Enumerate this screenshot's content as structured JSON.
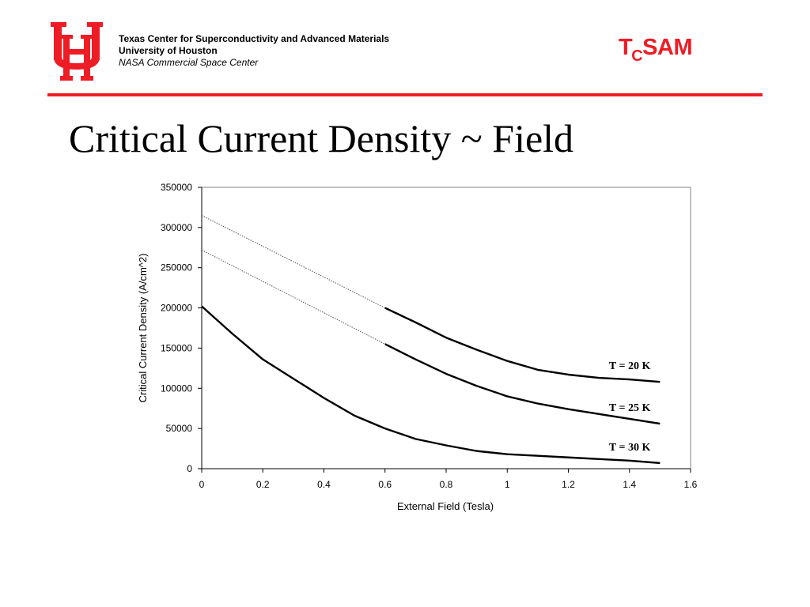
{
  "header": {
    "logo_text": "UH",
    "org_line1": "Texas Center for Superconductivity and Advanced Materials",
    "org_line2": "University of Houston",
    "org_line3": "NASA Commercial Space Center",
    "brand_main_t": "T",
    "brand_sub": "C",
    "brand_rest": "SAM",
    "accent_color": "#ee1c25"
  },
  "slide": {
    "title": "Critical Current Density ~ Field"
  },
  "chart_data": {
    "type": "line",
    "xlabel": "External Field (Tesla)",
    "ylabel": "Critical Current Density (A/cm^2)",
    "xlim": [
      0,
      1.6
    ],
    "ylim": [
      0,
      350000
    ],
    "xticks": [
      0,
      0.2,
      0.4,
      0.6,
      0.8,
      1,
      1.2,
      1.4,
      1.6
    ],
    "yticks": [
      0,
      50000,
      100000,
      150000,
      200000,
      250000,
      300000,
      350000
    ],
    "grid": false,
    "series": [
      {
        "name": "T = 20 K",
        "x": [
          0.6,
          0.7,
          0.8,
          0.9,
          1.0,
          1.1,
          1.2,
          1.3,
          1.4,
          1.5
        ],
        "values": [
          200000,
          182000,
          163000,
          148000,
          134000,
          123000,
          117000,
          113000,
          111000,
          108000
        ],
        "extrapolated_x": [
          0,
          0.6
        ],
        "extrapolated_values": [
          315000,
          200000
        ]
      },
      {
        "name": "T = 25 K",
        "x": [
          0.6,
          0.7,
          0.8,
          0.9,
          1.0,
          1.1,
          1.2,
          1.3,
          1.4,
          1.5
        ],
        "values": [
          155000,
          136000,
          118000,
          103000,
          90000,
          81000,
          74000,
          68000,
          62000,
          56000
        ],
        "extrapolated_x": [
          0,
          0.6
        ],
        "extrapolated_values": [
          272000,
          155000
        ]
      },
      {
        "name": "T = 30 K",
        "x": [
          0,
          0.1,
          0.2,
          0.3,
          0.4,
          0.5,
          0.6,
          0.7,
          0.8,
          0.9,
          1.0,
          1.1,
          1.2,
          1.3,
          1.4,
          1.5
        ],
        "values": [
          202000,
          168000,
          136000,
          112000,
          88000,
          66000,
          50000,
          37000,
          29000,
          22000,
          18000,
          16000,
          14000,
          12000,
          10000,
          7000
        ]
      }
    ]
  }
}
